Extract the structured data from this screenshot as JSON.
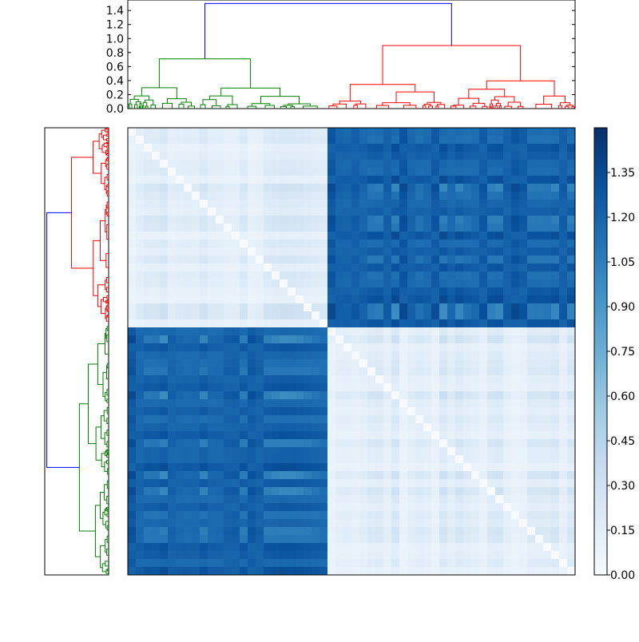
{
  "chart_data": [
    {
      "type": "dendrogram",
      "orientation": "top",
      "yticks": [
        "0.0",
        "0.2",
        "0.4",
        "0.6",
        "0.8",
        "1.0",
        "1.2",
        "1.4"
      ],
      "ylim": [
        0,
        1.55
      ],
      "root_height": 1.5,
      "link_colors": {
        "root": "#0000ff",
        "cluster_a": "#008000",
        "cluster_b": "#ff0000"
      },
      "clusters": [
        {
          "name_color": "green",
          "merge_height": 0.71,
          "leaf_count": 62
        },
        {
          "name_color": "red",
          "merge_height": 0.9,
          "leaf_count": 52
        }
      ]
    },
    {
      "type": "dendrogram",
      "orientation": "left",
      "link_colors": {
        "root": "#0000ff",
        "cluster_a": "#008000",
        "cluster_b": "#ff0000"
      }
    },
    {
      "type": "heatmap",
      "colormap": "Blues",
      "value_range": [
        0,
        1.5
      ],
      "block_split_fraction": 0.44,
      "typical_values": {
        "within_cluster": 0.08,
        "between_clusters": 1.2
      }
    },
    {
      "type": "colorbar",
      "ticks": [
        "0.00",
        "0.15",
        "0.30",
        "0.45",
        "0.60",
        "0.75",
        "0.90",
        "1.05",
        "1.20",
        "1.35"
      ],
      "range": [
        0,
        1.5
      ],
      "colors": [
        "#f7fbff",
        "#deebf7",
        "#c6dbef",
        "#9ecae1",
        "#6baed6",
        "#4292c6",
        "#2171b5",
        "#08519c",
        "#08306b"
      ]
    }
  ]
}
